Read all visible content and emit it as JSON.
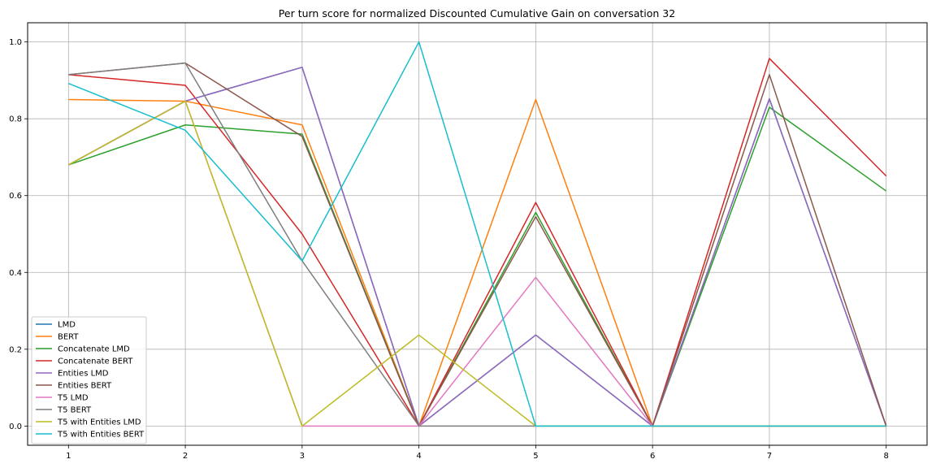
{
  "chart_data": {
    "type": "line",
    "title": "Per turn score for normalized Discounted Cumulative Gain on conversation 32",
    "xlabel": "",
    "ylabel": "",
    "x": [
      1,
      2,
      3,
      4,
      5,
      6,
      7,
      8
    ],
    "xticks": [
      "1",
      "2",
      "3",
      "4",
      "5",
      "6",
      "7",
      "8"
    ],
    "yticks": [
      "0.0",
      "0.2",
      "0.4",
      "0.6",
      "0.8",
      "1.0"
    ],
    "xlim": [
      0.65,
      8.35
    ],
    "ylim": [
      -0.05,
      1.05
    ],
    "grid": true,
    "legend_position": "lower-left",
    "series": [
      {
        "name": "LMD",
        "color": "#1f77b4",
        "values": [
          0.68,
          0.846,
          0.934,
          0.0,
          0.237,
          0.0,
          0.852,
          0.0
        ]
      },
      {
        "name": "BERT",
        "color": "#ff7f0e",
        "values": [
          0.85,
          0.846,
          0.784,
          0.0,
          0.85,
          0.0,
          0.0,
          0.0
        ]
      },
      {
        "name": "Concatenate LMD",
        "color": "#2ca02c",
        "values": [
          0.68,
          0.784,
          0.76,
          0.0,
          0.556,
          0.0,
          0.83,
          0.612
        ]
      },
      {
        "name": "Concatenate BERT",
        "color": "#d62728",
        "values": [
          0.915,
          0.887,
          0.5,
          0.0,
          0.582,
          0.0,
          0.957,
          0.651
        ]
      },
      {
        "name": "Entities LMD",
        "color": "#9467bd",
        "values": [
          0.68,
          0.846,
          0.934,
          0.0,
          0.237,
          0.0,
          0.852,
          0.0
        ]
      },
      {
        "name": "Entities BERT",
        "color": "#8c564b",
        "values": [
          0.915,
          0.945,
          0.754,
          0.0,
          0.545,
          0.0,
          0.915,
          0.0
        ]
      },
      {
        "name": "T5 LMD",
        "color": "#e377c2",
        "values": [
          0.68,
          0.846,
          0.0,
          0.0,
          0.387,
          0.0,
          0.0,
          0.0
        ]
      },
      {
        "name": "T5 BERT",
        "color": "#7f7f7f",
        "values": [
          0.915,
          0.945,
          0.43,
          0.0,
          0.0,
          0.0,
          0.0,
          0.0
        ]
      },
      {
        "name": "T5 with Entities LMD",
        "color": "#bcbd22",
        "values": [
          0.68,
          0.846,
          0.0,
          0.237,
          0.0,
          0.0,
          0.0,
          0.0
        ]
      },
      {
        "name": "T5 with Entities BERT",
        "color": "#17becf",
        "values": [
          0.892,
          0.77,
          0.43,
          1.0,
          0.0,
          0.0,
          0.0,
          0.0
        ]
      }
    ]
  }
}
